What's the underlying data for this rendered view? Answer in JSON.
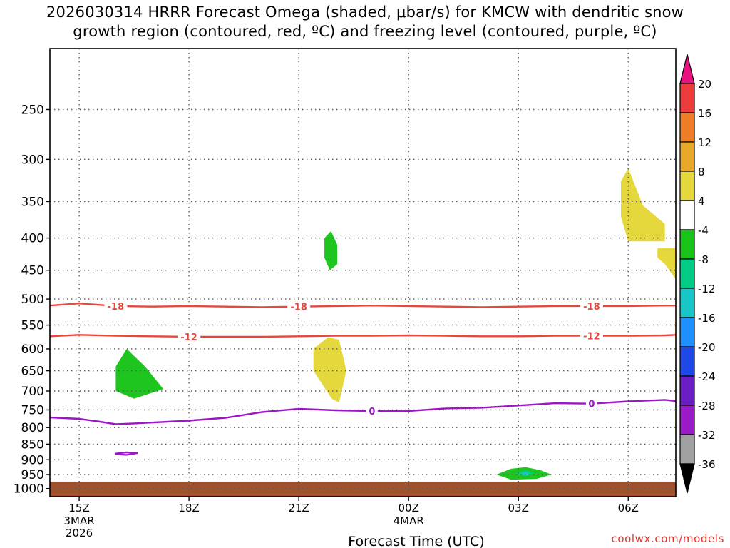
{
  "title": {
    "line1": "2026030314 HRRR Forecast Omega (shaded, μbar/s) for KMCW with dendritic snow",
    "line2": "growth region (contoured, red, ºC) and freezing level (contoured, purple, ºC)"
  },
  "credit": "coolwx.com/models",
  "chart_data": {
    "type": "time-height cross-section",
    "xlabel": "Forecast Time (UTC)",
    "x_range_hours_after_15z": [
      -0.8,
      16.3
    ],
    "x_ticks": [
      {
        "hour": 0,
        "label": "15Z",
        "sub": [
          "3MAR",
          "2026"
        ]
      },
      {
        "hour": 3,
        "label": "18Z",
        "sub": []
      },
      {
        "hour": 6,
        "label": "21Z",
        "sub": []
      },
      {
        "hour": 9,
        "label": "00Z",
        "sub": [
          "4MAR"
        ]
      },
      {
        "hour": 12,
        "label": "03Z",
        "sub": []
      },
      {
        "hour": 15,
        "label": "06Z",
        "sub": []
      }
    ],
    "y_axis": {
      "quantity": "pressure (hPa)",
      "scale": "log",
      "range": [
        200,
        1030
      ]
    },
    "y_ticks": [
      250,
      300,
      350,
      400,
      450,
      500,
      550,
      600,
      650,
      700,
      750,
      800,
      850,
      900,
      950,
      1000
    ],
    "grid": "dotted",
    "ground_level_hPa": 975,
    "colors": {
      "ground": "#a0522d",
      "dgz_contour": "#e8473d",
      "freezing_contour": "#9b17c5"
    },
    "contours": [
      {
        "group": "dgz",
        "label": "-18",
        "points": [
          [
            -0.8,
            512
          ],
          [
            0,
            508
          ],
          [
            1,
            513
          ],
          [
            2,
            514
          ],
          [
            3,
            513
          ],
          [
            4,
            514
          ],
          [
            5,
            515
          ],
          [
            6,
            514
          ],
          [
            7,
            513
          ],
          [
            8,
            512
          ],
          [
            9,
            513
          ],
          [
            10,
            514
          ],
          [
            11,
            515
          ],
          [
            12,
            514
          ],
          [
            13,
            513
          ],
          [
            14,
            513
          ],
          [
            15,
            513
          ],
          [
            16,
            512
          ],
          [
            16.3,
            512
          ]
        ],
        "labels_at": [
          1,
          6,
          14
        ]
      },
      {
        "group": "dgz",
        "label": "-12",
        "points": [
          [
            -0.8,
            573
          ],
          [
            0,
            570
          ],
          [
            1,
            572
          ],
          [
            2,
            573
          ],
          [
            3,
            574
          ],
          [
            4,
            574
          ],
          [
            5,
            574
          ],
          [
            6,
            573
          ],
          [
            7,
            572
          ],
          [
            8,
            572
          ],
          [
            9,
            571
          ],
          [
            10,
            572
          ],
          [
            11,
            573
          ],
          [
            12,
            573
          ],
          [
            13,
            572
          ],
          [
            14,
            572
          ],
          [
            15,
            572
          ],
          [
            16,
            571
          ],
          [
            16.3,
            570
          ]
        ],
        "labels_at": [
          3,
          14
        ]
      },
      {
        "group": "freezing",
        "label": "0",
        "points": [
          [
            -0.8,
            771
          ],
          [
            0,
            775
          ],
          [
            0.5,
            782
          ],
          [
            1,
            790
          ],
          [
            1.5,
            788
          ],
          [
            3,
            780
          ],
          [
            4,
            772
          ],
          [
            5,
            756
          ],
          [
            6,
            747
          ],
          [
            7,
            751
          ],
          [
            8,
            753
          ],
          [
            9,
            753
          ],
          [
            10,
            746
          ],
          [
            11,
            744
          ],
          [
            12,
            738
          ],
          [
            13,
            732
          ],
          [
            14,
            733
          ],
          [
            15,
            727
          ],
          [
            16,
            723
          ],
          [
            16.3,
            726
          ]
        ],
        "labels_at": [
          8,
          14
        ]
      },
      {
        "group": "freezing",
        "label": "",
        "closed": true,
        "points": [
          [
            1,
            880
          ],
          [
            1.3,
            876
          ],
          [
            1.6,
            878
          ],
          [
            1.3,
            884
          ],
          [
            1,
            882
          ]
        ]
      }
    ],
    "shaded": [
      {
        "range": "-8 to -4",
        "color": "#1ec51e",
        "polygon": [
          [
            1,
            640
          ],
          [
            1.3,
            600
          ],
          [
            1.8,
            640
          ],
          [
            2.3,
            695
          ],
          [
            1.5,
            720
          ],
          [
            1,
            700
          ]
        ]
      },
      {
        "range": "-8 to -4",
        "color": "#1ec51e",
        "polygon": [
          [
            6.7,
            400
          ],
          [
            6.88,
            390
          ],
          [
            7.05,
            410
          ],
          [
            7.05,
            440
          ],
          [
            6.85,
            450
          ],
          [
            6.7,
            430
          ]
        ]
      },
      {
        "range": "-8 to -4",
        "color": "#1ec51e",
        "polygon": [
          [
            11.4,
            950
          ],
          [
            11.8,
            930
          ],
          [
            12.2,
            925
          ],
          [
            12.6,
            935
          ],
          [
            12.9,
            950
          ],
          [
            12.5,
            965
          ],
          [
            11.8,
            968
          ]
        ]
      },
      {
        "range": "-12 to -8",
        "color": "#00d081",
        "polygon": [
          [
            11.9,
            945
          ],
          [
            12.2,
            936
          ],
          [
            12.45,
            944
          ],
          [
            12.2,
            956
          ]
        ]
      },
      {
        "range": "-16 to -12",
        "color": "#17c7c7",
        "polygon": [
          [
            12.05,
            946
          ],
          [
            12.2,
            941
          ],
          [
            12.3,
            948
          ],
          [
            12.2,
            953
          ]
        ]
      },
      {
        "range": "4 to 8",
        "color": "#e5d83d",
        "polygon": [
          [
            6.4,
            600
          ],
          [
            6.8,
            575
          ],
          [
            7.1,
            580
          ],
          [
            7.3,
            650
          ],
          [
            7.1,
            730
          ],
          [
            6.9,
            720
          ],
          [
            6.4,
            650
          ]
        ]
      },
      {
        "range": "4 to 8",
        "color": "#e5d83d",
        "polygon": [
          [
            14.8,
            325
          ],
          [
            15.0,
            310
          ],
          [
            15.4,
            355
          ],
          [
            16.0,
            380
          ],
          [
            16.0,
            405
          ],
          [
            15.0,
            405
          ],
          [
            14.8,
            370
          ]
        ]
      },
      {
        "range": "4 to 8",
        "color": "#e5d83d",
        "polygon": [
          [
            15.8,
            415
          ],
          [
            16.3,
            415
          ],
          [
            16.3,
            465
          ],
          [
            16.0,
            440
          ],
          [
            15.8,
            430
          ]
        ]
      }
    ]
  },
  "colorbar": {
    "levels": [
      "20",
      "16",
      "12",
      "8",
      "4",
      "-4",
      "-8",
      "-12",
      "-16",
      "-20",
      "-24",
      "-28",
      "-32",
      "-36"
    ],
    "colors_top_to_bottom": [
      "#e8117f",
      "#ee3b3b",
      "#ee7d26",
      "#e8a82a",
      "#e5d83d",
      "#ffffff",
      "#18c418",
      "#00cc83",
      "#17c6c6",
      "#1e90ff",
      "#1f48e8",
      "#6b1ec4",
      "#9b1ac8",
      "#a0a0a0",
      "#000000"
    ]
  }
}
